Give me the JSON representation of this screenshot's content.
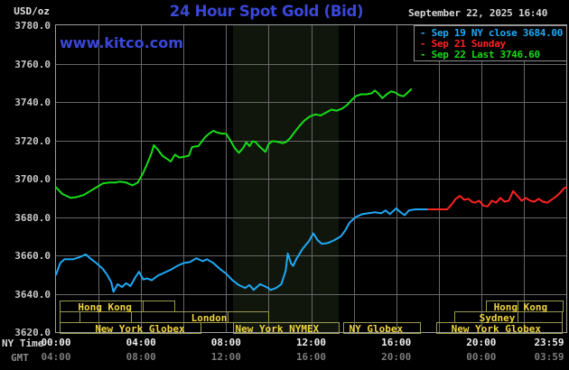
{
  "header": {
    "units_label": "USD/oz",
    "title": "24 Hour Spot Gold (Bid)",
    "datetime": "September 22, 2025 16:40",
    "watermark": "www.kitco.com"
  },
  "legend": {
    "items": [
      {
        "label": "- Sep 19 NY close 3684.00",
        "color": "#1FA9F5"
      },
      {
        "label": "- Sep 21 Sunday",
        "color": "#FF2222"
      },
      {
        "label": "- Sep 22 Last 3746.60",
        "color": "#17DC17"
      }
    ]
  },
  "axes": {
    "x_ny_label": "NY Time",
    "x_gmt_label": "GMT",
    "y_ticks": [
      {
        "value": 3780,
        "label": "3780.0"
      },
      {
        "value": 3760,
        "label": "3760.0"
      },
      {
        "value": 3740,
        "label": "3740.0"
      },
      {
        "value": 3720,
        "label": "3720.0"
      },
      {
        "value": 3700,
        "label": "3700.0"
      },
      {
        "value": 3680,
        "label": "3680.0"
      },
      {
        "value": 3660,
        "label": "3660.0"
      },
      {
        "value": 3640,
        "label": "3640.0"
      },
      {
        "value": 3620,
        "label": "3620.0"
      }
    ],
    "x_ticks": [
      {
        "hour": 0,
        "ny": "00:00",
        "gmt": "04:00"
      },
      {
        "hour": 4,
        "ny": "04:00",
        "gmt": "08:00"
      },
      {
        "hour": 8,
        "ny": "08:00",
        "gmt": "12:00"
      },
      {
        "hour": 12,
        "ny": "12:00",
        "gmt": "16:00"
      },
      {
        "hour": 16,
        "ny": "16:00",
        "gmt": "20:00"
      },
      {
        "hour": 20,
        "ny": "20:00",
        "gmt": "00:00"
      },
      {
        "hour": 23.983,
        "ny": "23:59",
        "gmt": "03:59"
      }
    ]
  },
  "chart_data": {
    "type": "line",
    "title": "24 Hour Spot Gold (Bid)",
    "ylabel": "USD/oz",
    "xlabel": "NY Time",
    "y_axis": {
      "range": [
        3620,
        3780
      ],
      "tick_step": 20
    },
    "x_axis": {
      "range_hours": [
        0,
        24
      ],
      "tick_step_hours": 4,
      "grid_step_hours": 2
    },
    "grid": true,
    "legend_position": "top-right",
    "nymex_band_hours": [
      8.33,
      13.3
    ],
    "colors": {
      "background": "#000000",
      "grid": "#676767",
      "border": "#9E9E9E",
      "band": "#11160D",
      "session_border": "#9A9A52",
      "session_text": "#F0D43C"
    },
    "series": [
      {
        "name": "Sep 19 NY close",
        "close": 3684.0,
        "color": "#1FA9F5",
        "points": [
          [
            0,
            3650
          ],
          [
            0.2,
            3656
          ],
          [
            0.4,
            3658
          ],
          [
            0.8,
            3658
          ],
          [
            1.1,
            3659
          ],
          [
            1.4,
            3660.5
          ],
          [
            1.6,
            3658.5
          ],
          [
            1.9,
            3656
          ],
          [
            2.2,
            3653
          ],
          [
            2.4,
            3650
          ],
          [
            2.6,
            3646
          ],
          [
            2.7,
            3641
          ],
          [
            2.9,
            3645
          ],
          [
            3.1,
            3643.5
          ],
          [
            3.3,
            3645.5
          ],
          [
            3.5,
            3644
          ],
          [
            3.7,
            3648
          ],
          [
            3.9,
            3651.5
          ],
          [
            4.1,
            3647.5
          ],
          [
            4.3,
            3648
          ],
          [
            4.5,
            3647
          ],
          [
            4.8,
            3649.5
          ],
          [
            5.1,
            3651
          ],
          [
            5.4,
            3652.5
          ],
          [
            5.7,
            3654.5
          ],
          [
            6,
            3656
          ],
          [
            6.3,
            3656.5
          ],
          [
            6.6,
            3658.5
          ],
          [
            6.9,
            3657
          ],
          [
            7.1,
            3658
          ],
          [
            7.4,
            3656
          ],
          [
            7.7,
            3653
          ],
          [
            8,
            3650.5
          ],
          [
            8.3,
            3647
          ],
          [
            8.6,
            3644.5
          ],
          [
            8.9,
            3643
          ],
          [
            9.1,
            3644.5
          ],
          [
            9.3,
            3642
          ],
          [
            9.6,
            3645
          ],
          [
            9.9,
            3643.5
          ],
          [
            10.1,
            3642
          ],
          [
            10.35,
            3643
          ],
          [
            10.6,
            3645
          ],
          [
            10.8,
            3652
          ],
          [
            10.9,
            3661
          ],
          [
            11.05,
            3656
          ],
          [
            11.15,
            3654.5
          ],
          [
            11.3,
            3658
          ],
          [
            11.6,
            3663.5
          ],
          [
            11.9,
            3667.5
          ],
          [
            12.1,
            3671.5
          ],
          [
            12.3,
            3668
          ],
          [
            12.5,
            3666
          ],
          [
            12.8,
            3666.5
          ],
          [
            13.1,
            3668
          ],
          [
            13.4,
            3670
          ],
          [
            13.6,
            3673
          ],
          [
            13.8,
            3677
          ],
          [
            14.1,
            3680
          ],
          [
            14.4,
            3681.5
          ],
          [
            14.7,
            3682
          ],
          [
            15,
            3682.5
          ],
          [
            15.3,
            3682
          ],
          [
            15.5,
            3683.5
          ],
          [
            15.7,
            3681.5
          ],
          [
            16,
            3684.5
          ],
          [
            16.2,
            3682.5
          ],
          [
            16.4,
            3681
          ],
          [
            16.6,
            3683.5
          ],
          [
            16.9,
            3684
          ],
          [
            17.5,
            3684
          ]
        ]
      },
      {
        "name": "Sep 21 Sunday",
        "color": "#FF2222",
        "points": [
          [
            17.5,
            3684
          ],
          [
            18.4,
            3684
          ],
          [
            18.6,
            3686.5
          ],
          [
            18.8,
            3689.5
          ],
          [
            19,
            3691
          ],
          [
            19.2,
            3689
          ],
          [
            19.4,
            3689.5
          ],
          [
            19.55,
            3688
          ],
          [
            19.7,
            3687.5
          ],
          [
            19.9,
            3688.5
          ],
          [
            20.1,
            3686
          ],
          [
            20.3,
            3685.5
          ],
          [
            20.5,
            3688.5
          ],
          [
            20.7,
            3687.5
          ],
          [
            20.9,
            3690
          ],
          [
            21.1,
            3688
          ],
          [
            21.3,
            3688.5
          ],
          [
            21.5,
            3693.5
          ],
          [
            21.7,
            3691
          ],
          [
            21.9,
            3688.5
          ],
          [
            22.1,
            3690
          ],
          [
            22.3,
            3688.5
          ],
          [
            22.5,
            3688
          ],
          [
            22.7,
            3689.5
          ],
          [
            22.9,
            3688
          ],
          [
            23.1,
            3687.5
          ],
          [
            23.3,
            3689
          ],
          [
            23.5,
            3690.5
          ],
          [
            23.7,
            3692.5
          ],
          [
            23.9,
            3695
          ],
          [
            24,
            3695.5
          ]
        ]
      },
      {
        "name": "Sep 22 Last",
        "last": 3746.6,
        "color": "#17DC17",
        "points": [
          [
            0,
            3695.5
          ],
          [
            0.3,
            3692
          ],
          [
            0.7,
            3690
          ],
          [
            1,
            3690.5
          ],
          [
            1.3,
            3691.5
          ],
          [
            1.6,
            3693.5
          ],
          [
            1.9,
            3695.5
          ],
          [
            2.2,
            3697.5
          ],
          [
            2.5,
            3698
          ],
          [
            2.8,
            3698
          ],
          [
            3,
            3698.5
          ],
          [
            3.3,
            3698
          ],
          [
            3.6,
            3696.5
          ],
          [
            3.85,
            3698
          ],
          [
            4.1,
            3703
          ],
          [
            4.3,
            3708
          ],
          [
            4.5,
            3713.5
          ],
          [
            4.6,
            3717.5
          ],
          [
            4.8,
            3715
          ],
          [
            5,
            3712
          ],
          [
            5.2,
            3710.5
          ],
          [
            5.4,
            3709
          ],
          [
            5.6,
            3712.5
          ],
          [
            5.8,
            3711
          ],
          [
            6.05,
            3711.5
          ],
          [
            6.25,
            3712
          ],
          [
            6.4,
            3716.5
          ],
          [
            6.7,
            3717
          ],
          [
            7,
            3721.5
          ],
          [
            7.2,
            3723.5
          ],
          [
            7.4,
            3725
          ],
          [
            7.6,
            3724
          ],
          [
            7.8,
            3723.5
          ],
          [
            8,
            3723.5
          ],
          [
            8.2,
            3720
          ],
          [
            8.4,
            3716
          ],
          [
            8.6,
            3713.5
          ],
          [
            8.8,
            3716
          ],
          [
            8.95,
            3719
          ],
          [
            9.1,
            3717
          ],
          [
            9.25,
            3719.5
          ],
          [
            9.4,
            3719
          ],
          [
            9.55,
            3717
          ],
          [
            9.7,
            3715.5
          ],
          [
            9.85,
            3714
          ],
          [
            10,
            3718
          ],
          [
            10.15,
            3719.5
          ],
          [
            10.3,
            3719.5
          ],
          [
            10.5,
            3719
          ],
          [
            10.65,
            3718.5
          ],
          [
            10.8,
            3719
          ],
          [
            11,
            3721
          ],
          [
            11.2,
            3724
          ],
          [
            11.45,
            3727.5
          ],
          [
            11.7,
            3730.5
          ],
          [
            11.95,
            3732.5
          ],
          [
            12.2,
            3733.5
          ],
          [
            12.45,
            3733
          ],
          [
            12.7,
            3734.5
          ],
          [
            12.95,
            3736
          ],
          [
            13.2,
            3735.5
          ],
          [
            13.45,
            3736.5
          ],
          [
            13.7,
            3738.5
          ],
          [
            13.9,
            3741
          ],
          [
            14.1,
            3743
          ],
          [
            14.35,
            3744
          ],
          [
            14.6,
            3744
          ],
          [
            14.85,
            3744.5
          ],
          [
            15,
            3746
          ],
          [
            15.15,
            3744.5
          ],
          [
            15.35,
            3742
          ],
          [
            15.55,
            3744
          ],
          [
            15.75,
            3745.5
          ],
          [
            15.95,
            3745
          ],
          [
            16.15,
            3743.5
          ],
          [
            16.35,
            3743
          ],
          [
            16.55,
            3745
          ],
          [
            16.7,
            3746.6
          ]
        ]
      }
    ],
    "sessions": [
      {
        "row": 0,
        "start": 0.17,
        "end": 5.56,
        "divider": 4.08,
        "label": "Hong Kong",
        "label_center": 2.3
      },
      {
        "row": 0,
        "start": 20.2,
        "end": 23.8,
        "divider": 21.7,
        "label": "Hong Kong",
        "label_center": 21.85
      },
      {
        "row": 1,
        "start": 0.17,
        "end": 1.1,
        "label": ""
      },
      {
        "row": 1,
        "start": 1.1,
        "end": 3.53,
        "label": ""
      },
      {
        "row": 1,
        "start": 3.53,
        "end": 9.98,
        "divider": 8.07,
        "label": "London",
        "label_center": 7.2
      },
      {
        "row": 1,
        "start": 18.73,
        "end": 23.8,
        "divider": 21.7,
        "label": "Sydney",
        "label_center": 20.75
      },
      {
        "row": 2,
        "start": 0.17,
        "end": 6.8,
        "label": "New York Globex",
        "label_center": 3.95
      },
      {
        "row": 2,
        "start": 8.33,
        "end": 13.3,
        "label": "New York NYMEX",
        "label_center": 10.4
      },
      {
        "row": 2,
        "start": 13.5,
        "end": 17.12,
        "label": "NY Globex",
        "label_center": 15.05
      },
      {
        "row": 2,
        "start": 17.88,
        "end": 23.8,
        "label": "New York Globex",
        "label_center": 20.7
      }
    ]
  }
}
